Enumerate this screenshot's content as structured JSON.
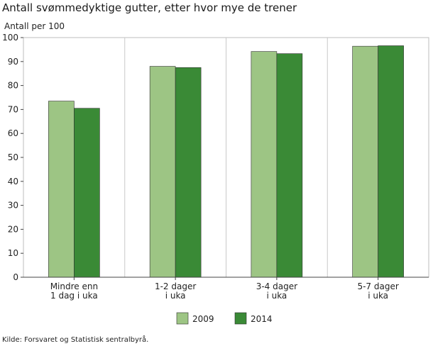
{
  "chart_data": {
    "type": "bar",
    "title": "Antall svømmedyktige gutter, etter hvor mye de trener",
    "ylabel": "Antall per 100",
    "xlabel": "",
    "ylim": [
      0,
      100
    ],
    "yticks": [
      0,
      10,
      20,
      30,
      40,
      50,
      60,
      70,
      80,
      90,
      100
    ],
    "grid": "vertical category separators",
    "legend_position": "bottom",
    "categories": [
      [
        "Mindre enn",
        "1 dag i uka"
      ],
      [
        "1-2 dager",
        "i uka"
      ],
      [
        "3-4 dager",
        "i uka"
      ],
      [
        "5-7 dager",
        "i uka"
      ]
    ],
    "series": [
      {
        "name": "2009",
        "color": "#9dc584",
        "values": [
          73.5,
          88,
          94.2,
          96.4
        ]
      },
      {
        "name": "2014",
        "color": "#3a8a36",
        "values": [
          70.5,
          87.5,
          93.3,
          96.6
        ]
      }
    ],
    "source": "Kilde: Forsvaret og Statistisk sentralbyrå."
  }
}
